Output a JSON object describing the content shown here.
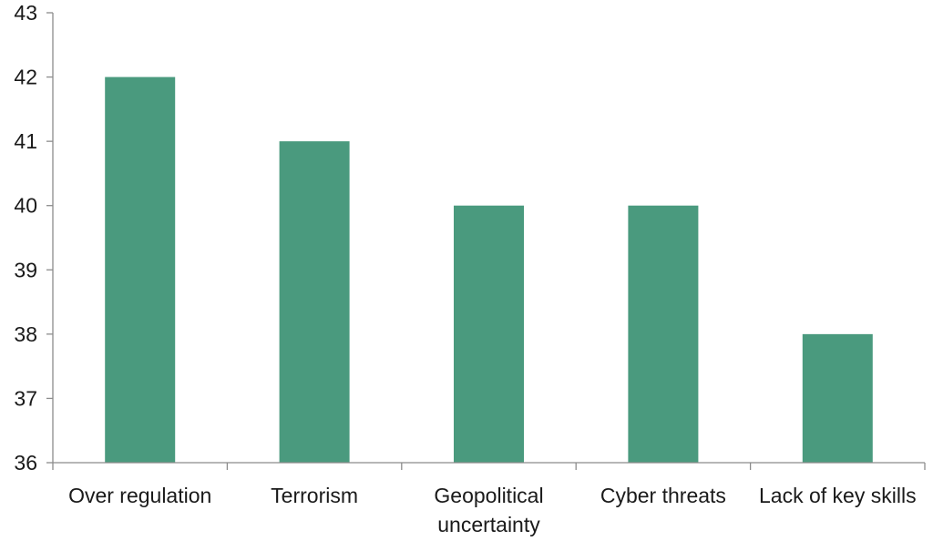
{
  "chart_data": {
    "type": "bar",
    "title": "",
    "xlabel": "",
    "ylabel": "",
    "categories": [
      [
        "Over regulation"
      ],
      [
        "Terrorism"
      ],
      [
        "Geopolitical",
        "uncertainty"
      ],
      [
        "Cyber threats"
      ],
      [
        "Lack of key skills"
      ]
    ],
    "values": [
      42,
      41,
      40,
      40,
      38
    ],
    "ylim": [
      36,
      43
    ],
    "yticks": [
      36,
      37,
      38,
      39,
      40,
      41,
      42,
      43
    ],
    "grid": false,
    "legend": "none",
    "bar_color": "#4a9a7e",
    "axis_color": "#8c8c8c"
  }
}
